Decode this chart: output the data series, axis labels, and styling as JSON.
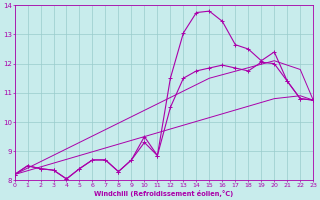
{
  "xlabel": "Windchill (Refroidissement éolien,°C)",
  "xlim": [
    0,
    23
  ],
  "ylim": [
    8,
    14
  ],
  "yticks": [
    8,
    9,
    10,
    11,
    12,
    13,
    14
  ],
  "xticks": [
    0,
    1,
    2,
    3,
    4,
    5,
    6,
    7,
    8,
    9,
    10,
    11,
    12,
    13,
    14,
    15,
    16,
    17,
    18,
    19,
    20,
    21,
    22,
    23
  ],
  "bg_color": "#c8ecec",
  "line_color": "#aa00aa",
  "grid_color": "#99cccc",
  "hours": [
    0,
    1,
    2,
    3,
    4,
    5,
    6,
    7,
    8,
    9,
    10,
    11,
    12,
    13,
    14,
    15,
    16,
    17,
    18,
    19,
    20,
    21,
    22,
    23
  ],
  "temp": [
    8.2,
    8.5,
    8.4,
    8.35,
    8.05,
    8.4,
    8.7,
    8.7,
    8.3,
    8.7,
    9.5,
    8.85,
    11.5,
    13.05,
    13.75,
    13.8,
    13.45,
    12.65,
    12.5,
    12.1,
    12.4,
    11.4,
    10.8,
    10.75
  ],
  "windchill": [
    8.2,
    8.5,
    8.4,
    8.35,
    8.05,
    8.4,
    8.7,
    8.7,
    8.3,
    8.7,
    9.3,
    8.85,
    10.5,
    11.5,
    11.75,
    11.85,
    11.95,
    11.85,
    11.75,
    12.05,
    12.0,
    11.4,
    10.8,
    10.75
  ],
  "linear_low": [
    8.2,
    8.33,
    8.46,
    8.59,
    8.72,
    8.85,
    8.98,
    9.11,
    9.24,
    9.37,
    9.5,
    9.63,
    9.76,
    9.89,
    10.02,
    10.15,
    10.28,
    10.41,
    10.54,
    10.67,
    10.8,
    10.85,
    10.9,
    10.75
  ],
  "linear_high": [
    8.2,
    8.42,
    8.64,
    8.86,
    9.08,
    9.3,
    9.52,
    9.74,
    9.96,
    10.18,
    10.4,
    10.62,
    10.84,
    11.06,
    11.28,
    11.5,
    11.62,
    11.74,
    11.86,
    11.98,
    12.1,
    11.95,
    11.8,
    10.75
  ]
}
